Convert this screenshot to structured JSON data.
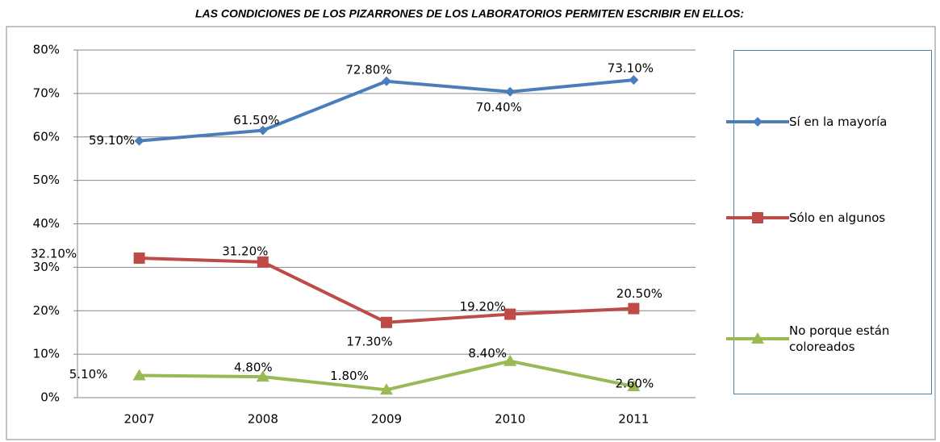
{
  "chart_data": {
    "type": "line",
    "title": "LAS CONDICIONES DE LOS PIZARRONES DE LOS LABORATORIOS PERMITEN ESCRIBIR EN ELLOS:",
    "categories": [
      "2007",
      "2008",
      "2009",
      "2010",
      "2011"
    ],
    "series": [
      {
        "name": "Sí en la mayoría",
        "color": "#4a7ebb",
        "marker": "diamond",
        "values": [
          59.1,
          61.5,
          72.8,
          70.4,
          73.1
        ],
        "value_labels": [
          "59.10%",
          "61.50%",
          "72.80%",
          "70.40%",
          "73.10%"
        ]
      },
      {
        "name": "Sólo en algunos",
        "color": "#be4b48",
        "marker": "square",
        "values": [
          32.1,
          31.2,
          17.3,
          19.2,
          20.5
        ],
        "value_labels": [
          "32.10%",
          "31.20%",
          "17.30%",
          "19.20%",
          "20.50%"
        ]
      },
      {
        "name": "No porque están coloreados",
        "color": "#98b954",
        "marker": "triangle",
        "values": [
          5.1,
          4.8,
          1.8,
          8.4,
          2.6
        ],
        "value_labels": [
          "5.10%",
          "4.80%",
          "1.80%",
          "8.40%",
          "2.60%"
        ]
      }
    ],
    "ylim": [
      0,
      80
    ],
    "yticks": [
      {
        "value": 0,
        "label": "0%"
      },
      {
        "value": 10,
        "label": "10%"
      },
      {
        "value": 20,
        "label": "20%"
      },
      {
        "value": 30,
        "label": "30%"
      },
      {
        "value": 40,
        "label": "40%"
      },
      {
        "value": 50,
        "label": "50%"
      },
      {
        "value": 60,
        "label": "60%"
      },
      {
        "value": 70,
        "label": "70%"
      },
      {
        "value": 80,
        "label": "80%"
      }
    ],
    "grid": true,
    "legend": "right"
  }
}
